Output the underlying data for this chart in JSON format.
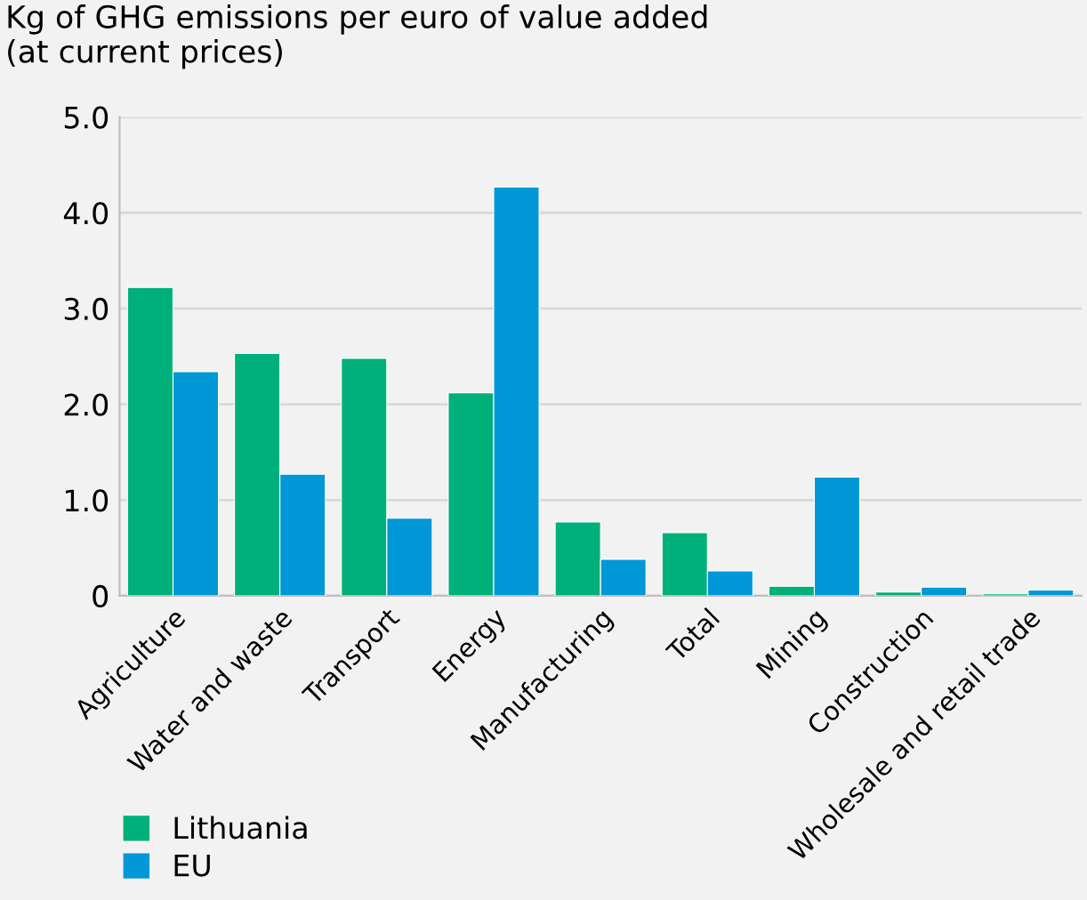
{
  "chart_data": {
    "type": "bar",
    "title": "Kg of GHG emissions per euro of value added\n(at current prices)",
    "categories": [
      "Agriculture",
      "Water and waste",
      "Transport",
      "Energy",
      "Manufacturing",
      "Total",
      "Mining",
      "Construction",
      "Wholesale and retail trade"
    ],
    "series": [
      {
        "name": "Lithuania",
        "color": "#00b07a",
        "values": [
          3.22,
          2.53,
          2.48,
          2.12,
          0.77,
          0.66,
          0.1,
          0.04,
          0.02
        ]
      },
      {
        "name": "EU",
        "color": "#0098d6",
        "values": [
          2.34,
          1.27,
          0.81,
          4.27,
          0.38,
          0.26,
          1.24,
          0.09,
          0.06
        ]
      }
    ],
    "ylim": [
      0,
      5
    ],
    "yticks": [
      {
        "value": 0,
        "label": "0"
      },
      {
        "value": 1,
        "label": "1.0"
      },
      {
        "value": 2,
        "label": "2.0"
      },
      {
        "value": 3,
        "label": "3.0"
      },
      {
        "value": 4,
        "label": "4.0"
      },
      {
        "value": 5,
        "label": "5.0"
      }
    ],
    "grid": "y",
    "legend": "bottom left"
  }
}
